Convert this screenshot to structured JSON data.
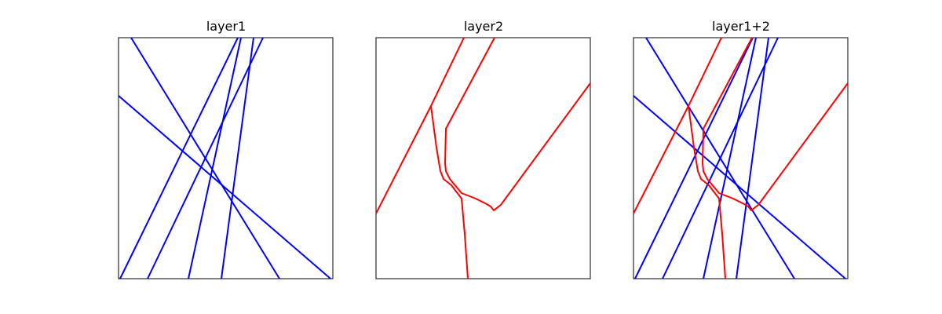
{
  "colors": {
    "layer1": "#0000ff",
    "layer2": "#ff0000",
    "frame": "#000000",
    "background": "#ffffff"
  },
  "chart_data": {
    "type": "line",
    "grid": false,
    "axes_ticks": false,
    "panels": [
      {
        "title": "layer1",
        "layers": [
          "layer1"
        ]
      },
      {
        "title": "layer2",
        "layers": [
          "layer2"
        ]
      },
      {
        "title": "layer1+2",
        "layers": [
          "layer1",
          "layer2"
        ]
      }
    ]
  }
}
